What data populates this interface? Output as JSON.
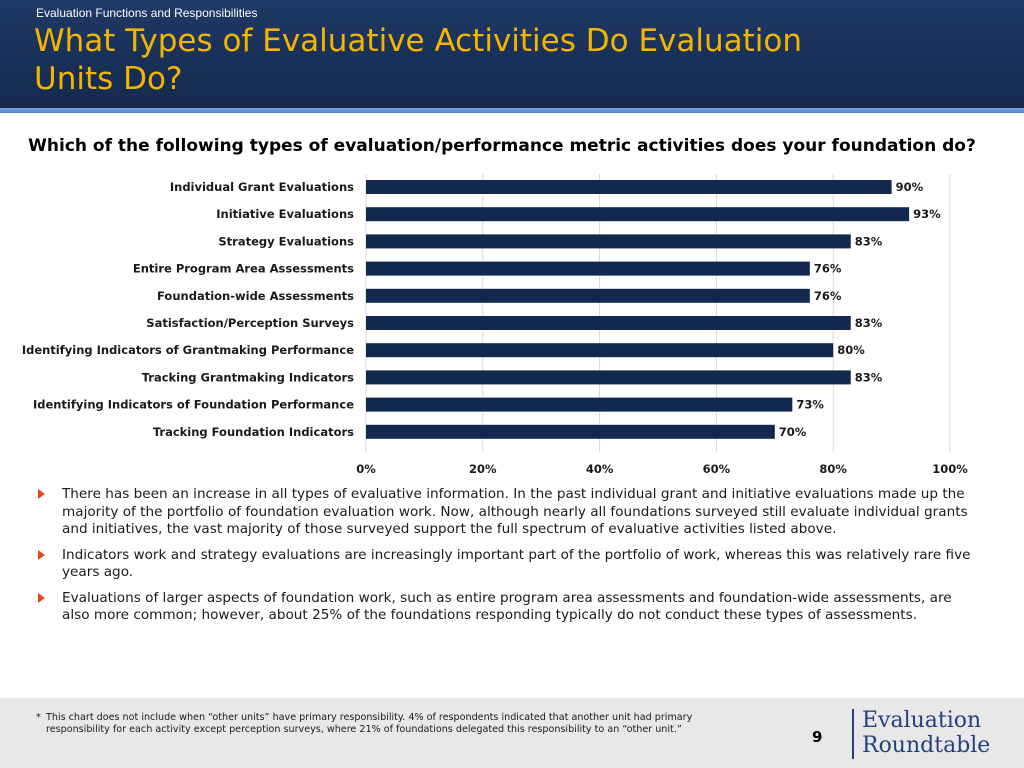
{
  "header": {
    "section": "Evaluation Functions and Responsibilities",
    "title": "What Types of Evaluative Activities Do Evaluation Units Do?"
  },
  "question": "Which of the following types of evaluation/performance metric activities does your foundation do?",
  "colors": {
    "bar": "#12284f",
    "accent_title": "#f5b400",
    "bullet": "#e24a1a"
  },
  "chart_data": {
    "type": "bar",
    "orientation": "horizontal",
    "categories": [
      "Individual Grant Evaluations",
      "Initiative Evaluations",
      "Strategy Evaluations",
      "Entire Program Area Assessments",
      "Foundation-wide Assessments",
      "Satisfaction/Perception Surveys",
      "Identifying Indicators of Grantmaking Performance",
      "Tracking Grantmaking Indicators",
      "Identifying Indicators of Foundation Performance",
      "Tracking Foundation Indicators"
    ],
    "values": [
      90,
      93,
      83,
      76,
      76,
      83,
      80,
      83,
      73,
      70
    ],
    "value_labels": [
      "90%",
      "93%",
      "83%",
      "76%",
      "76%",
      "83%",
      "80%",
      "83%",
      "73%",
      "70%"
    ],
    "xlim": [
      0,
      100
    ],
    "xticks": [
      0,
      20,
      40,
      60,
      80,
      100
    ],
    "xtick_labels": [
      "0%",
      "20%",
      "40%",
      "60%",
      "80%",
      "100%"
    ],
    "grid": true,
    "title": "",
    "xlabel": "",
    "ylabel": ""
  },
  "bullets": [
    "There has been an increase in all types of evaluative information. In the past individual grant and initiative evaluations made up the majority of the portfolio of foundation evaluation work.  Now, although nearly all foundations surveyed still evaluate individual grants and initiatives, the vast majority of those surveyed support the full spectrum of evaluative activities listed above.",
    "Indicators work and strategy evaluations are increasingly important part of the portfolio of work, whereas this was relatively rare five years ago.",
    "Evaluations of larger aspects of foundation work, such as entire program area assessments and foundation-wide assessments, are also more common; however, about 25% of the foundations responding typically do not conduct these types of assessments."
  ],
  "footer": {
    "star": "*",
    "footnote": "This chart does not include when “other units” have primary responsibility. 4% of respondents indicated that another unit had primary responsibility for each activity except perception surveys, where 21% of foundations delegated this responsibility to an “other unit.”",
    "page_number": "9",
    "logo_line1": "Evaluation",
    "logo_line2": "Roundtable"
  }
}
